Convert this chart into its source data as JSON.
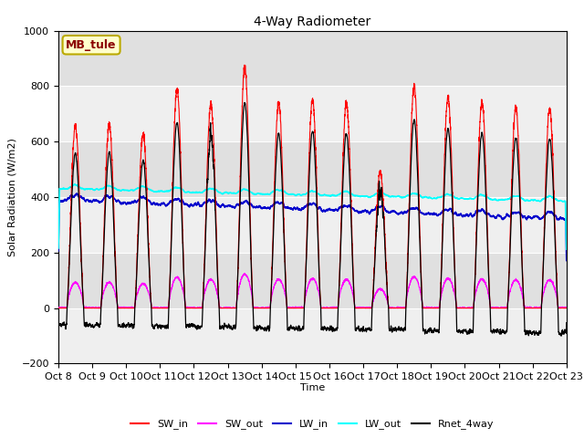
{
  "title": "4-Way Radiometer",
  "ylabel": "Solar Radiation (W/m2)",
  "xlabel": "Time",
  "station_label": "MB_tule",
  "ylim": [
    -200,
    1000
  ],
  "x_tick_labels": [
    "Oct 8",
    "Oct 9",
    "Oct 10",
    "Oct 11",
    "Oct 12",
    "Oct 13",
    "Oct 14",
    "Oct 15",
    "Oct 16",
    "Oct 17",
    "Oct 18",
    "Oct 19",
    "Oct 20",
    "Oct 21",
    "Oct 22",
    "Oct 23"
  ],
  "bg_color": "#e0e0e0",
  "sw_in_color": "#ff0000",
  "sw_out_color": "#ff00ff",
  "lw_in_color": "#0000cc",
  "lw_out_color": "#00ffff",
  "rnet_color": "#000000",
  "legend_labels": [
    "SW_in",
    "SW_out",
    "LW_in",
    "LW_out",
    "Rnet_4way"
  ],
  "n_days": 15,
  "points_per_day": 288
}
